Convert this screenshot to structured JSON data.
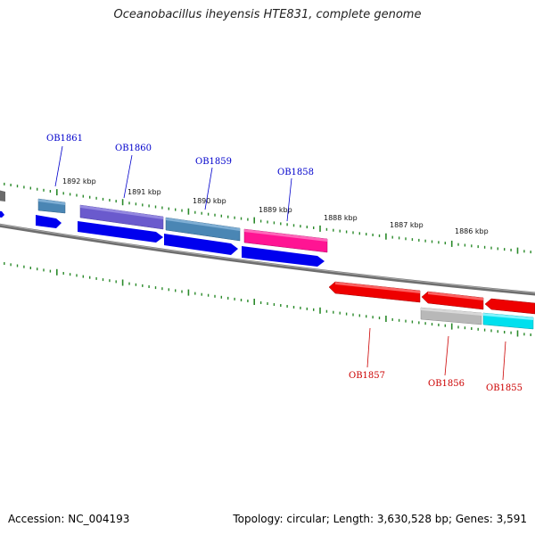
{
  "title": "Oceanobacillus iheyensis HTE831, complete genome",
  "footer": {
    "accession": "Accession: NC_004193",
    "summary": "Topology: circular; Length: 3,630,528 bp; Genes: 3,591"
  },
  "colors": {
    "backbone": "#808080",
    "tick": "#2a8a2a",
    "forward_label": "#0000cc",
    "reverse_label": "#cc0000",
    "blue": "#0000ee",
    "steel": "#4a86b4",
    "purple": "#6a5acd",
    "pink": "#ff1493",
    "red": "#ee0000",
    "grey": "#b8b8b8",
    "cyan": "#00e0ee",
    "dark": "#606060"
  },
  "position_labels": [
    "1892 kbp",
    "1891 kbp",
    "1890 kbp",
    "1889 kbp",
    "1888 kbp",
    "1887 kbp",
    "1886 kbp"
  ],
  "genes": {
    "forward": [
      "OB1861",
      "OB1860",
      "OB1859",
      "OB1858"
    ],
    "reverse": [
      "OB1857",
      "OB1856",
      "OB1855"
    ]
  }
}
